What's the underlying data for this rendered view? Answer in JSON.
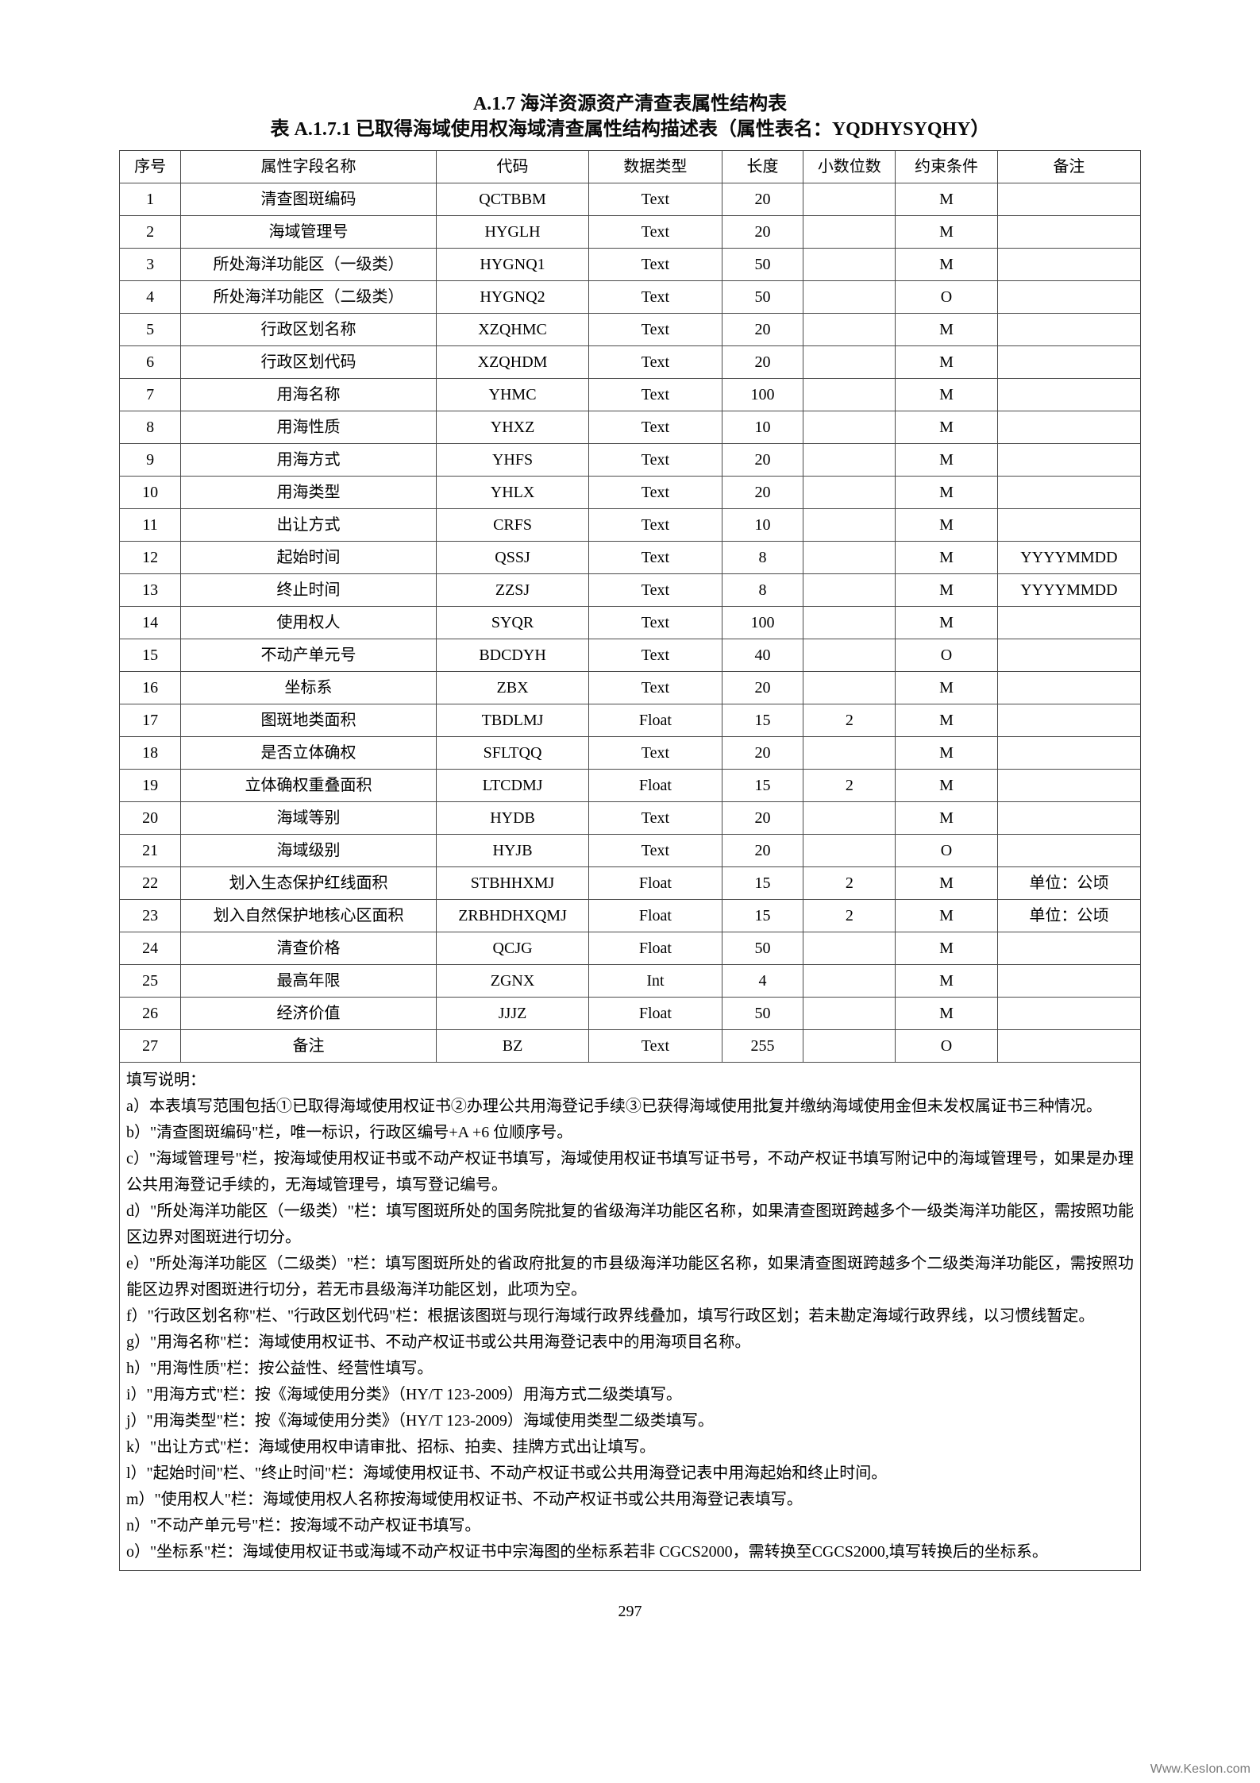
{
  "titles": {
    "main": "A.1.7 海洋资源资产清查表属性结构表",
    "sub": "表 A.1.7.1 已取得海域使用权海域清查属性结构描述表（属性表名：YQDHYSYQHY）"
  },
  "headers": {
    "seq": "序号",
    "name": "属性字段名称",
    "code": "代码",
    "type": "数据类型",
    "len": "长度",
    "dec": "小数位数",
    "con": "约束条件",
    "note": "备注"
  },
  "rows": [
    {
      "seq": "1",
      "name": "清查图斑编码",
      "code": "QCTBBM",
      "type": "Text",
      "len": "20",
      "dec": "",
      "con": "M",
      "note": ""
    },
    {
      "seq": "2",
      "name": "海域管理号",
      "code": "HYGLH",
      "type": "Text",
      "len": "20",
      "dec": "",
      "con": "M",
      "note": ""
    },
    {
      "seq": "3",
      "name": "所处海洋功能区（一级类）",
      "code": "HYGNQ1",
      "type": "Text",
      "len": "50",
      "dec": "",
      "con": "M",
      "note": ""
    },
    {
      "seq": "4",
      "name": "所处海洋功能区（二级类）",
      "code": "HYGNQ2",
      "type": "Text",
      "len": "50",
      "dec": "",
      "con": "O",
      "note": ""
    },
    {
      "seq": "5",
      "name": "行政区划名称",
      "code": "XZQHMC",
      "type": "Text",
      "len": "20",
      "dec": "",
      "con": "M",
      "note": ""
    },
    {
      "seq": "6",
      "name": "行政区划代码",
      "code": "XZQHDM",
      "type": "Text",
      "len": "20",
      "dec": "",
      "con": "M",
      "note": ""
    },
    {
      "seq": "7",
      "name": "用海名称",
      "code": "YHMC",
      "type": "Text",
      "len": "100",
      "dec": "",
      "con": "M",
      "note": ""
    },
    {
      "seq": "8",
      "name": "用海性质",
      "code": "YHXZ",
      "type": "Text",
      "len": "10",
      "dec": "",
      "con": "M",
      "note": ""
    },
    {
      "seq": "9",
      "name": "用海方式",
      "code": "YHFS",
      "type": "Text",
      "len": "20",
      "dec": "",
      "con": "M",
      "note": ""
    },
    {
      "seq": "10",
      "name": "用海类型",
      "code": "YHLX",
      "type": "Text",
      "len": "20",
      "dec": "",
      "con": "M",
      "note": ""
    },
    {
      "seq": "11",
      "name": "出让方式",
      "code": "CRFS",
      "type": "Text",
      "len": "10",
      "dec": "",
      "con": "M",
      "note": ""
    },
    {
      "seq": "12",
      "name": "起始时间",
      "code": "QSSJ",
      "type": "Text",
      "len": "8",
      "dec": "",
      "con": "M",
      "note": "YYYYMMDD"
    },
    {
      "seq": "13",
      "name": "终止时间",
      "code": "ZZSJ",
      "type": "Text",
      "len": "8",
      "dec": "",
      "con": "M",
      "note": "YYYYMMDD"
    },
    {
      "seq": "14",
      "name": "使用权人",
      "code": "SYQR",
      "type": "Text",
      "len": "100",
      "dec": "",
      "con": "M",
      "note": ""
    },
    {
      "seq": "15",
      "name": "不动产单元号",
      "code": "BDCDYH",
      "type": "Text",
      "len": "40",
      "dec": "",
      "con": "O",
      "note": ""
    },
    {
      "seq": "16",
      "name": "坐标系",
      "code": "ZBX",
      "type": "Text",
      "len": "20",
      "dec": "",
      "con": "M",
      "note": ""
    },
    {
      "seq": "17",
      "name": "图斑地类面积",
      "code": "TBDLMJ",
      "type": "Float",
      "len": "15",
      "dec": "2",
      "con": "M",
      "note": ""
    },
    {
      "seq": "18",
      "name": "是否立体确权",
      "code": "SFLTQQ",
      "type": "Text",
      "len": "20",
      "dec": "",
      "con": "M",
      "note": ""
    },
    {
      "seq": "19",
      "name": "立体确权重叠面积",
      "code": "LTCDMJ",
      "type": "Float",
      "len": "15",
      "dec": "2",
      "con": "M",
      "note": ""
    },
    {
      "seq": "20",
      "name": "海域等别",
      "code": "HYDB",
      "type": "Text",
      "len": "20",
      "dec": "",
      "con": "M",
      "note": ""
    },
    {
      "seq": "21",
      "name": "海域级别",
      "code": "HYJB",
      "type": "Text",
      "len": "20",
      "dec": "",
      "con": "O",
      "note": ""
    },
    {
      "seq": "22",
      "name": "划入生态保护红线面积",
      "code": "STBHHXMJ",
      "type": "Float",
      "len": "15",
      "dec": "2",
      "con": "M",
      "note": "单位：公顷"
    },
    {
      "seq": "23",
      "name": "划入自然保护地核心区面积",
      "code": "ZRBHDHXQMJ",
      "type": "Float",
      "len": "15",
      "dec": "2",
      "con": "M",
      "note": "单位：公顷"
    },
    {
      "seq": "24",
      "name": "清查价格",
      "code": "QCJG",
      "type": "Float",
      "len": "50",
      "dec": "",
      "con": "M",
      "note": ""
    },
    {
      "seq": "25",
      "name": "最高年限",
      "code": "ZGNX",
      "type": "Int",
      "len": "4",
      "dec": "",
      "con": "M",
      "note": ""
    },
    {
      "seq": "26",
      "name": "经济价值",
      "code": "JJJZ",
      "type": "Float",
      "len": "50",
      "dec": "",
      "con": "M",
      "note": ""
    },
    {
      "seq": "27",
      "name": "备注",
      "code": "BZ",
      "type": "Text",
      "len": "255",
      "dec": "",
      "con": "O",
      "note": ""
    }
  ],
  "notes": {
    "heading": "填写说明：",
    "items": [
      "a）本表填写范围包括①已取得海域使用权证书②办理公共用海登记手续③已获得海域使用批复并缴纳海域使用金但未发权属证书三种情况。",
      "b）\"清查图斑编码\"栏，唯一标识，行政区编号+A +6 位顺序号。",
      "c）\"海域管理号\"栏，按海域使用权证书或不动产权证书填写，海域使用权证书填写证书号，不动产权证书填写附记中的海域管理号，如果是办理公共用海登记手续的，无海域管理号，填写登记编号。",
      "d）\"所处海洋功能区（一级类）\"栏：填写图斑所处的国务院批复的省级海洋功能区名称，如果清查图斑跨越多个一级类海洋功能区，需按照功能区边界对图斑进行切分。",
      "e）\"所处海洋功能区（二级类）\"栏：填写图斑所处的省政府批复的市县级海洋功能区名称，如果清查图斑跨越多个二级类海洋功能区，需按照功能区边界对图斑进行切分，若无市县级海洋功能区划，此项为空。",
      "f）\"行政区划名称\"栏、\"行政区划代码\"栏：根据该图斑与现行海域行政界线叠加，填写行政区划；若未勘定海域行政界线，以习惯线暂定。",
      "g）\"用海名称\"栏：海域使用权证书、不动产权证书或公共用海登记表中的用海项目名称。",
      "h）\"用海性质\"栏：按公益性、经营性填写。",
      "i）\"用海方式\"栏：按《海域使用分类》（HY/T 123-2009）用海方式二级类填写。",
      "j）\"用海类型\"栏：按《海域使用分类》（HY/T 123-2009）海域使用类型二级类填写。",
      "k）\"出让方式\"栏：海域使用权申请审批、招标、拍卖、挂牌方式出让填写。",
      "l）\"起始时间\"栏、\"终止时间\"栏：海域使用权证书、不动产权证书或公共用海登记表中用海起始和终止时间。",
      "m）\"使用权人\"栏：海域使用权人名称按海域使用权证书、不动产权证书或公共用海登记表填写。",
      "n）\"不动产单元号\"栏：按海域不动产权证书填写。",
      "o）\"坐标系\"栏：海域使用权证书或海域不动产权证书中宗海图的坐标系若非 CGCS2000，需转换至CGCS2000,填写转换后的坐标系。"
    ]
  },
  "pageNumber": "297",
  "watermark": "Www.KesIon.com"
}
